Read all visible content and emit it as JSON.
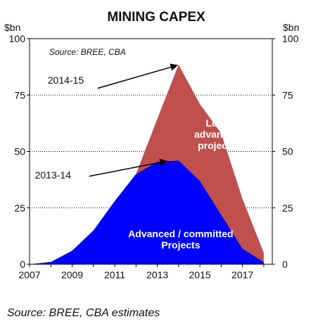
{
  "footer_source": "Source: BREE, CBA estimates",
  "chart_data": {
    "type": "area",
    "stacked": true,
    "title": "MINING CAPEX",
    "y_unit_left": "$bn",
    "y_unit_right": "$bn",
    "source_note": "Source: BREE, CBA",
    "xlim": [
      2007,
      2018.4
    ],
    "ylim": [
      0,
      100
    ],
    "x_ticks": [
      "2007",
      "2009",
      "2011",
      "2013",
      "2015",
      "2017"
    ],
    "y_ticks": [
      "0",
      "25",
      "50",
      "75",
      "100"
    ],
    "grid": true,
    "x": [
      2007,
      2008,
      2009,
      2010,
      2011,
      2012,
      2013,
      2014,
      2015,
      2016,
      2017,
      2018
    ],
    "series": [
      {
        "name": "Advanced / committed Projects",
        "label_lines": [
          "Advanced / committed",
          "Projects"
        ],
        "color": "#0000ff",
        "values": [
          0,
          1,
          6,
          15,
          28,
          40,
          45.5,
          46,
          37,
          22,
          7,
          1
        ]
      },
      {
        "name": "Less advanced projects",
        "label_lines": [
          "Less",
          "advanced",
          "projects"
        ],
        "color": "#c0504d",
        "values": [
          0,
          0,
          0,
          0,
          0,
          0,
          19,
          42.5,
          34,
          36,
          22,
          4
        ]
      }
    ],
    "annotations": [
      {
        "text": "2014-15",
        "x": 2014,
        "y": 88.5
      },
      {
        "text": "2013-14",
        "x": 2013.5,
        "y": 46
      }
    ]
  }
}
